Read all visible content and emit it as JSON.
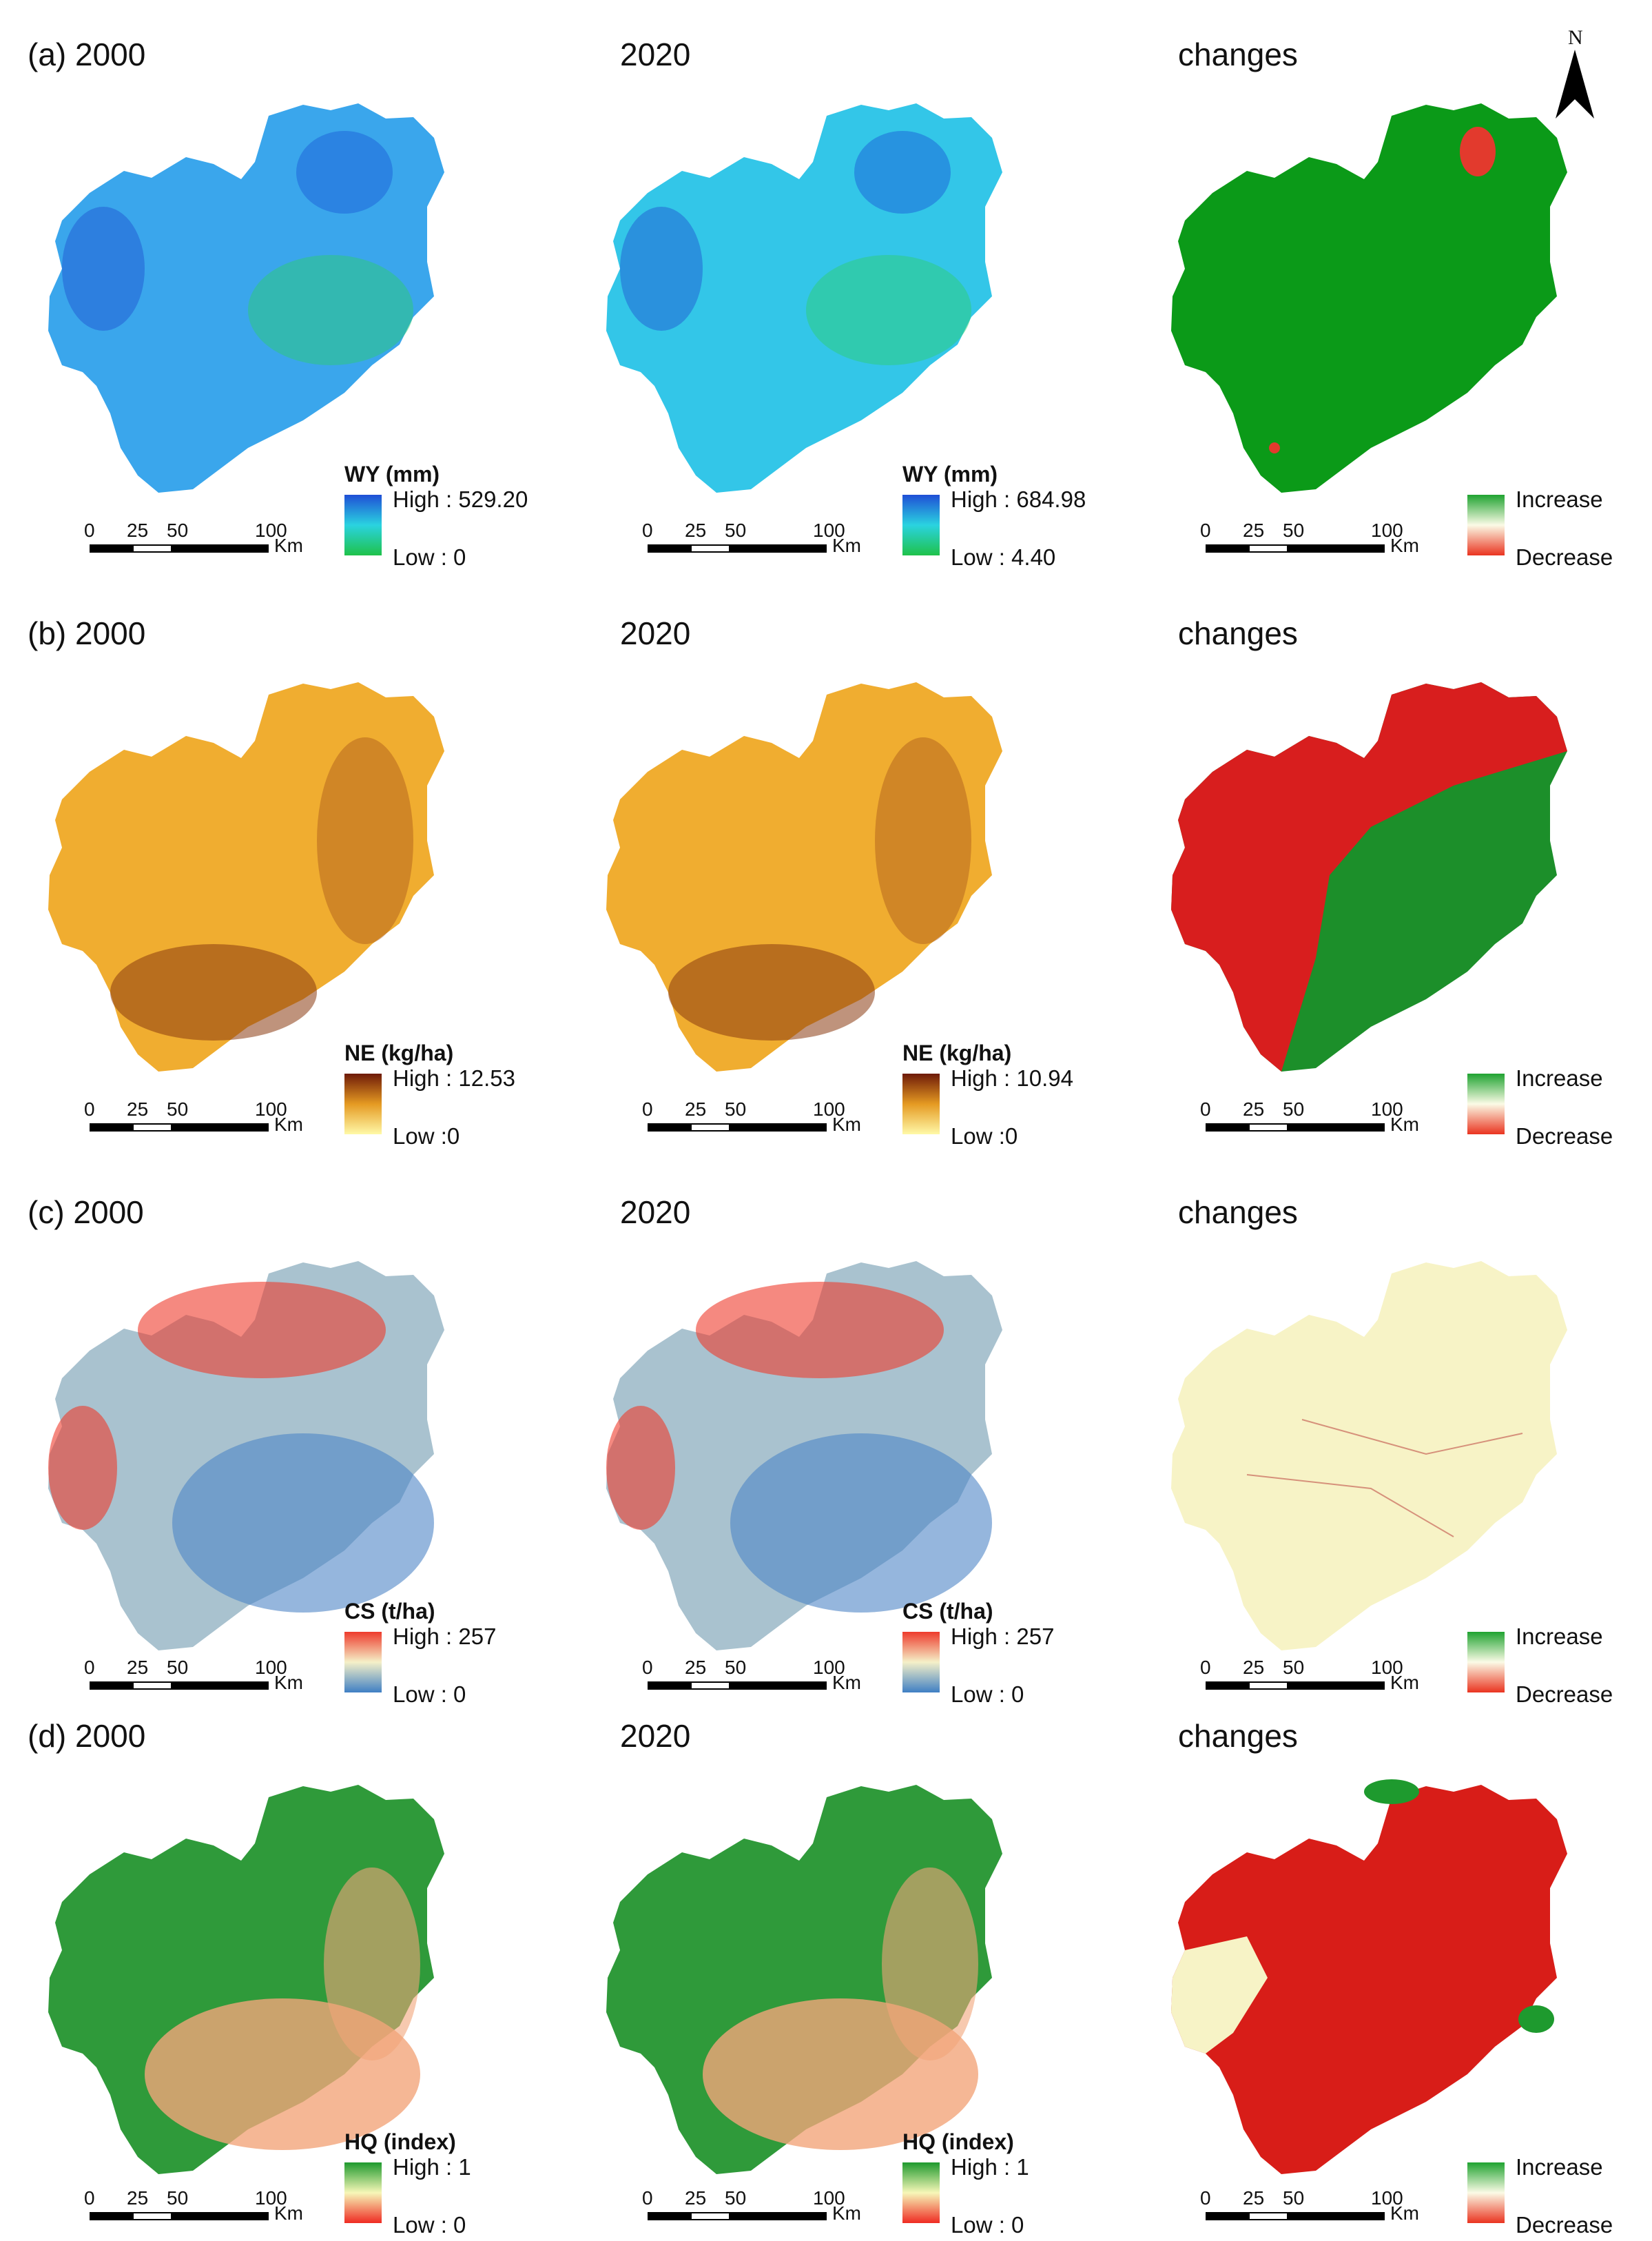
{
  "scale_ticks": [
    "0",
    "25",
    "50",
    "100"
  ],
  "scale_unit": "Km",
  "north_label": "N",
  "rows": [
    {
      "id": "wy",
      "label": "(a) 2000",
      "year2": "2020",
      "changes": "changes",
      "legend_title": "WY (mm)",
      "high_2000": "High : 529.20",
      "low_2000": "Low : 0",
      "high_2020": "High : 684.98",
      "low_2020": "Low : 4.40",
      "increase": "Increase",
      "decrease": "Decrease",
      "ramp_colors": [
        "#1f4fd6",
        "#2ad3e0",
        "#1fc24a"
      ]
    },
    {
      "id": "ne",
      "label": "(b) 2000",
      "year2": "2020",
      "changes": "changes",
      "legend_title": "NE    (kg/ha)",
      "high_2000": "High : 12.53",
      "low_2000": "Low :0",
      "high_2020": "High : 10.94",
      "low_2020": "Low :0",
      "increase": "Increase",
      "decrease": "Decrease",
      "ramp_colors": [
        "#6e1a08",
        "#e59a22",
        "#fff9a8"
      ]
    },
    {
      "id": "cs",
      "label": "(c) 2000",
      "year2": "2020",
      "changes": "changes",
      "legend_title": "CS (t/ha)",
      "high_2000": "High : 257",
      "low_2000": "Low : 0",
      "high_2020": "High : 257",
      "low_2020": "Low : 0",
      "increase": "Increase",
      "decrease": "Decrease",
      "ramp_colors": [
        "#ee3b2c",
        "#f5f0c8",
        "#3f7fc4"
      ]
    },
    {
      "id": "hq",
      "label": "(d) 2000",
      "year2": "2020",
      "changes": "changes",
      "legend_title": "HQ (index)",
      "high_2000": "High : 1",
      "low_2000": "Low : 0",
      "high_2020": "High : 1",
      "low_2020": "Low : 0",
      "increase": "Increase",
      "decrease": "Decrease",
      "ramp_colors": [
        "#1e9a2e",
        "#f7f7b8",
        "#ef2b22"
      ]
    }
  ],
  "change_ramp_colors": [
    "#1fa331",
    "#fbfbe6",
    "#ea3420"
  ],
  "map_fill_colors": {
    "wy_2000": "#3aa6ec",
    "wy_2020": "#33c6e8",
    "wy_change": "#0b9a18",
    "ne_2000": "#f0ad30",
    "ne_2020": "#f0ad30",
    "ne_change": "#1c8f2a",
    "cs_2000": "#a9c2cf",
    "cs_2020": "#a9c2cf",
    "cs_change": "#f7f3c6",
    "hq_2000": "#2f9a3a",
    "hq_2020": "#2f9a3a",
    "hq_change": "#d81d18"
  }
}
